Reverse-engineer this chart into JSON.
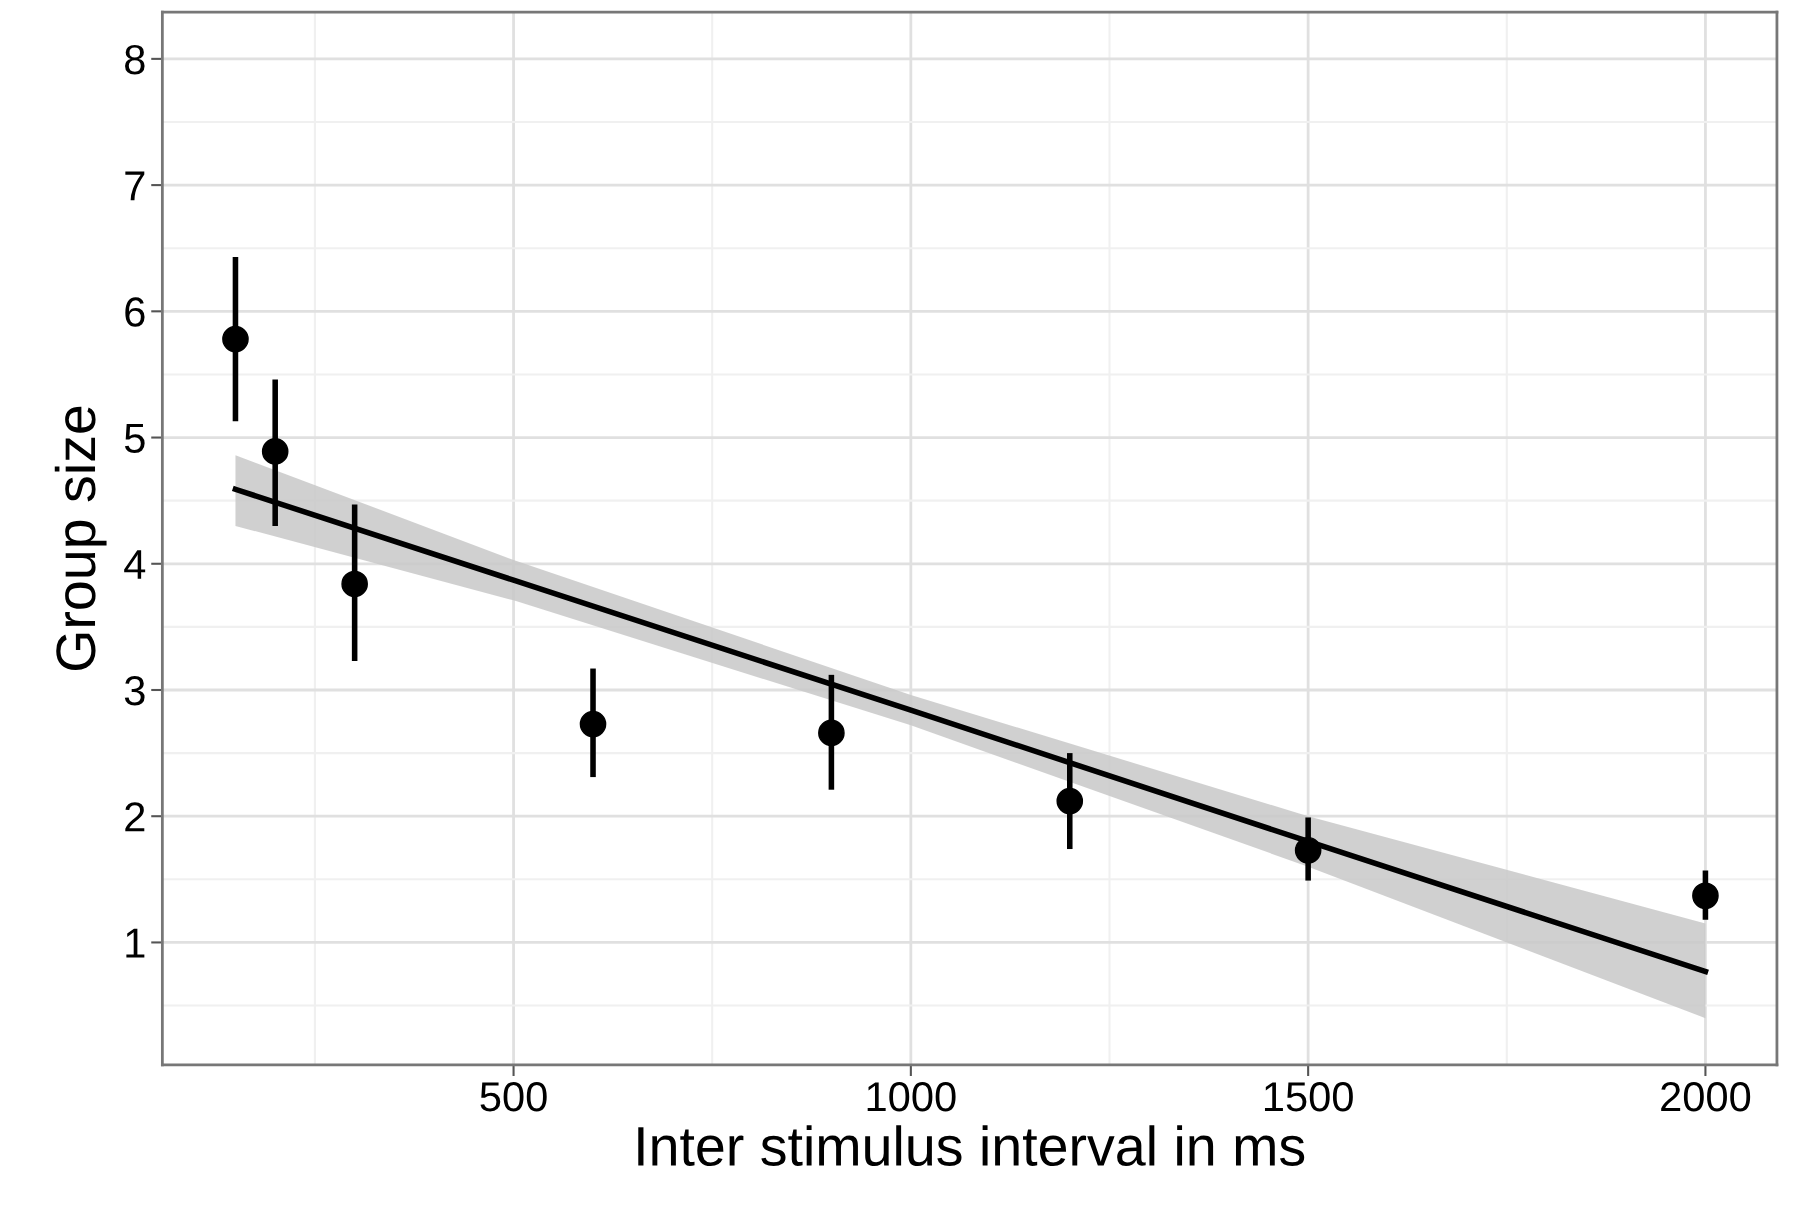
{
  "chart_data": {
    "type": "scatter",
    "xlabel": "Inter stimulus interval in ms",
    "ylabel": "Group size",
    "xlim": [
      58,
      2090
    ],
    "ylim": [
      0.03,
      8.37
    ],
    "xticks": [
      500,
      1000,
      1500,
      2000
    ],
    "yticks": [
      1,
      2,
      3,
      4,
      5,
      6,
      7,
      8
    ],
    "grid": true,
    "series": [
      {
        "marker": "circle",
        "color": "#000000",
        "x": [
          150,
          200,
          300,
          600,
          900,
          1200,
          1500,
          2000
        ],
        "values": [
          5.78,
          4.89,
          3.84,
          2.73,
          2.66,
          2.12,
          1.73,
          1.37
        ],
        "errors": [
          [
            5.13,
            6.43
          ],
          [
            4.3,
            5.46
          ],
          [
            3.23,
            4.47
          ],
          [
            2.31,
            3.17
          ],
          [
            2.21,
            3.12
          ],
          [
            1.74,
            2.5
          ],
          [
            1.49,
            1.99
          ],
          [
            1.18,
            1.57
          ]
        ]
      },
      {
        "type": "line",
        "marker": "none",
        "color": "#000000",
        "x": [
          150,
          500,
          1000,
          1500,
          2000
        ],
        "values": [
          4.59,
          3.87,
          2.84,
          1.8,
          0.77
        ],
        "lower": [
          4.3,
          3.71,
          2.72,
          1.6,
          0.4
        ],
        "upper": [
          4.86,
          4.03,
          2.96,
          2.0,
          1.15
        ]
      }
    ]
  }
}
